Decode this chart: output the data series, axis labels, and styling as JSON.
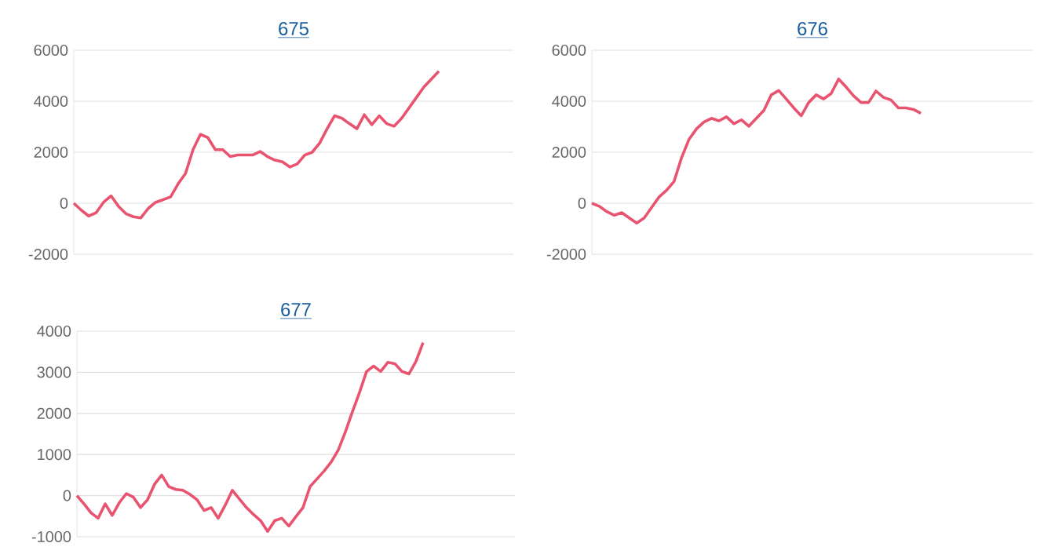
{
  "chart_data": [
    {
      "type": "line",
      "title": "675",
      "grid": "y",
      "ylim": [
        -2000,
        6000
      ],
      "yticks": [
        -2000,
        0,
        2000,
        4000,
        6000
      ],
      "categories": [
        null,
        null,
        null,
        null,
        null,
        null,
        null,
        null,
        null,
        null,
        null,
        null,
        null,
        null,
        null,
        null,
        null,
        null,
        null,
        null,
        null,
        null,
        null,
        null,
        null,
        null,
        null,
        null,
        null,
        null,
        null,
        null,
        null,
        null,
        null,
        null,
        null,
        null,
        null,
        null,
        null,
        null,
        null,
        null,
        null,
        null,
        null,
        null,
        null,
        null,
        null,
        null,
        null,
        null,
        null,
        null,
        null,
        null,
        null,
        null
      ],
      "series": [
        {
          "color": "#e8546f",
          "values": [
            0,
            -270,
            -500,
            -370,
            40,
            290,
            -120,
            -410,
            -530,
            -575,
            -200,
            40,
            140,
            250,
            760,
            1170,
            2100,
            2700,
            2570,
            2100,
            2100,
            1830,
            1890,
            1890,
            1890,
            2030,
            1830,
            1690,
            1620,
            1420,
            1540,
            1890,
            2000,
            2360,
            2920,
            3430,
            3330,
            3120,
            2920,
            3470,
            3080,
            3430,
            3120,
            3020,
            3330,
            3740,
            4150,
            4560,
            4870,
            5180,
            null,
            null,
            null,
            null,
            null,
            null,
            null,
            null,
            null,
            null
          ]
        }
      ]
    },
    {
      "type": "line",
      "title": "676",
      "grid": "y",
      "ylim": [
        -2000,
        6000
      ],
      "yticks": [
        -2000,
        0,
        2000,
        4000,
        6000
      ],
      "categories": [
        null,
        null,
        null,
        null,
        null,
        null,
        null,
        null,
        null,
        null,
        null,
        null,
        null,
        null,
        null,
        null,
        null,
        null,
        null,
        null,
        null,
        null,
        null,
        null,
        null,
        null,
        null,
        null,
        null,
        null,
        null,
        null,
        null,
        null,
        null,
        null,
        null,
        null,
        null,
        null,
        null,
        null,
        null,
        null,
        null,
        null,
        null,
        null,
        null,
        null,
        null,
        null,
        null,
        null,
        null,
        null,
        null,
        null,
        null,
        null
      ],
      "series": [
        {
          "color": "#e8546f",
          "values": [
            0,
            -120,
            -330,
            -470,
            -370,
            -575,
            -780,
            -575,
            -160,
            250,
            510,
            860,
            1790,
            2510,
            2920,
            3190,
            3330,
            3230,
            3390,
            3120,
            3270,
            3020,
            3330,
            3640,
            4250,
            4420,
            4090,
            3740,
            3430,
            3950,
            4250,
            4090,
            4300,
            4870,
            4560,
            4210,
            3950,
            3950,
            4400,
            4150,
            4050,
            3740,
            3740,
            3680,
            3530,
            null,
            null,
            null,
            null,
            null,
            null,
            null,
            null,
            null,
            null,
            null,
            null,
            null,
            null,
            null
          ]
        }
      ]
    },
    {
      "type": "line",
      "title": "677",
      "grid": "y",
      "ylim": [
        -1000,
        4000
      ],
      "yticks": [
        -1000,
        0,
        1000,
        2000,
        3000,
        4000
      ],
      "categories": [
        null,
        null,
        null,
        null,
        null,
        null,
        null,
        null,
        null,
        null,
        null,
        null,
        null,
        null,
        null,
        null,
        null,
        null,
        null,
        null,
        null,
        null,
        null,
        null,
        null,
        null,
        null,
        null,
        null,
        null,
        null,
        null,
        null,
        null,
        null,
        null,
        null,
        null,
        null,
        null,
        null,
        null,
        null,
        null,
        null,
        null,
        null,
        null,
        null,
        null,
        null,
        null,
        null,
        null,
        null,
        null,
        null,
        null,
        null,
        null,
        null,
        null,
        null
      ],
      "series": [
        {
          "color": "#e8546f",
          "values": [
            0,
            -200,
            -420,
            -550,
            -200,
            -480,
            -170,
            50,
            -40,
            -290,
            -100,
            280,
            500,
            220,
            150,
            130,
            30,
            -100,
            -360,
            -290,
            -550,
            -230,
            130,
            -80,
            -290,
            -460,
            -610,
            -870,
            -610,
            -550,
            -740,
            -510,
            -290,
            220,
            410,
            600,
            820,
            1110,
            1550,
            2040,
            2510,
            3020,
            3150,
            3020,
            3240,
            3210,
            3020,
            2960,
            3270,
            3720,
            null,
            null,
            null,
            null,
            null,
            null,
            null,
            null,
            null,
            null,
            null,
            null,
            null
          ]
        }
      ]
    }
  ]
}
